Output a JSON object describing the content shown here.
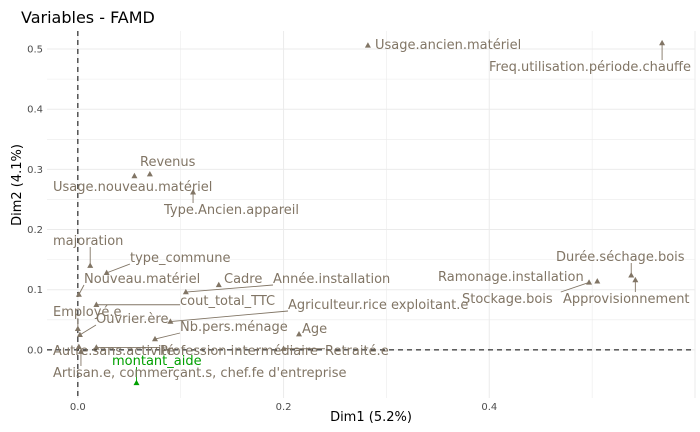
{
  "chart_data": {
    "type": "scatter",
    "title": "Variables - FAMD",
    "xlabel": "Dim1 (5.2%)",
    "ylabel": "Dim2 (4.1%)",
    "xlim": [
      -0.03,
      0.6
    ],
    "ylim": [
      -0.08,
      0.53
    ],
    "xticks": [
      0.0,
      0.2,
      0.4
    ],
    "yticks": [
      0.0,
      0.1,
      0.2,
      0.3,
      0.4,
      0.5
    ],
    "xtick_labels": [
      "0.0",
      "0.2",
      "0.4"
    ],
    "ytick_labels": [
      "0.0",
      "0.1",
      "0.2",
      "0.3",
      "0.4",
      "0.5"
    ],
    "grid": true,
    "reference_lines": {
      "x": 0,
      "y": 0,
      "style": "dashed"
    },
    "colors": {
      "quantitative": "#817565",
      "supplementary": "#00a000",
      "grid": "#ebebeb",
      "tick_text": "#4d4d4d"
    },
    "points": [
      {
        "label": "Usage.ancien.matériel",
        "x": 0.282,
        "y": 0.506,
        "kind": "quantitative"
      },
      {
        "label": "Freq.utilisation.période.chauffe",
        "x": 0.568,
        "y": 0.51,
        "kind": "quantitative"
      },
      {
        "label": "Revenus",
        "x": 0.07,
        "y": 0.292,
        "kind": "quantitative"
      },
      {
        "label": "Usage.nouveau.matériel",
        "x": 0.055,
        "y": 0.289,
        "kind": "quantitative"
      },
      {
        "label": "Type.Ancien.appareil",
        "x": 0.112,
        "y": 0.262,
        "kind": "quantitative"
      },
      {
        "label": "majoration",
        "x": 0.012,
        "y": 0.14,
        "kind": "quantitative"
      },
      {
        "label": "type_commune",
        "x": 0.028,
        "y": 0.128,
        "kind": "quantitative"
      },
      {
        "label": "Nouveau.matériel",
        "x": 0.001,
        "y": 0.092,
        "kind": "quantitative"
      },
      {
        "label": "Cadre",
        "x": 0.137,
        "y": 0.108,
        "kind": "quantitative"
      },
      {
        "label": "Année.installation",
        "x": 0.105,
        "y": 0.096,
        "kind": "quantitative"
      },
      {
        "label": "cout_total_TTC",
        "x": 0.018,
        "y": 0.075,
        "kind": "quantitative"
      },
      {
        "label": "Agriculteur.rice exploitant.e",
        "x": 0.09,
        "y": 0.047,
        "kind": "quantitative"
      },
      {
        "label": "Employé.e",
        "x": 0.0,
        "y": 0.035,
        "kind": "quantitative"
      },
      {
        "label": "Ouvrier.ère",
        "x": 0.002,
        "y": 0.025,
        "kind": "quantitative"
      },
      {
        "label": "Nb.pers.ménage",
        "x": 0.075,
        "y": 0.018,
        "kind": "quantitative"
      },
      {
        "label": "Age",
        "x": 0.215,
        "y": 0.026,
        "kind": "quantitative"
      },
      {
        "label": "Autre.sans.activité",
        "x": 0.001,
        "y": 0.005,
        "kind": "quantitative"
      },
      {
        "label": "Profession intermédiaire",
        "x": 0.018,
        "y": 0.004,
        "kind": "quantitative"
      },
      {
        "label": "Retraité.e",
        "x": 0.2,
        "y": 0.002,
        "kind": "quantitative"
      },
      {
        "label": "Artisan.e, commerçant.s, chef.fe d'entreprise",
        "x": 0.003,
        "y": -0.003,
        "kind": "quantitative"
      },
      {
        "label": "Durée.séchage.bois",
        "x": 0.538,
        "y": 0.124,
        "kind": "quantitative"
      },
      {
        "label": "Ramonage.installation",
        "x": 0.505,
        "y": 0.114,
        "kind": "quantitative"
      },
      {
        "label": "Stockage.bois",
        "x": 0.497,
        "y": 0.112,
        "kind": "quantitative"
      },
      {
        "label": "Approvisionnement",
        "x": 0.542,
        "y": 0.116,
        "kind": "quantitative"
      },
      {
        "label": "montant_aide",
        "x": 0.057,
        "y": -0.055,
        "kind": "supplementary"
      }
    ]
  },
  "label_layout_note": "",
  "ui": {}
}
